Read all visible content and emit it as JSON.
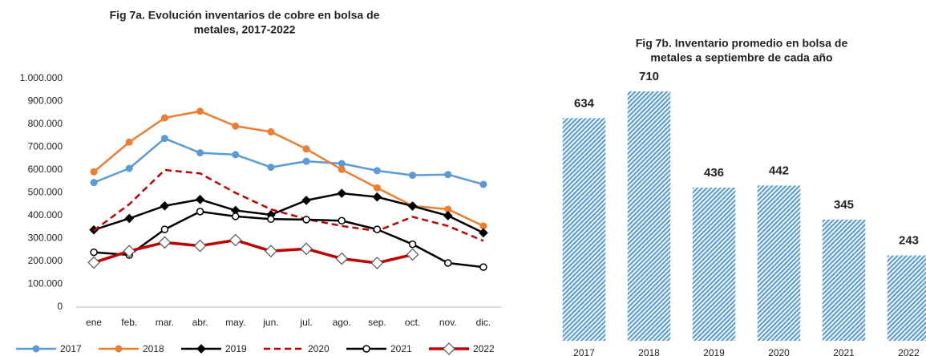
{
  "chart_data": [
    {
      "type": "line",
      "title": [
        "Fig 7a. Evolución  inventarios de cobre en bolsa de",
        "metales, 2017-2022"
      ],
      "categories": [
        "ene",
        "feb.",
        "mar.",
        "abr.",
        "may.",
        "jun.",
        "jul.",
        "ago.",
        "sep.",
        "oct.",
        "nov.",
        "dic."
      ],
      "ylim": [
        0,
        1000000
      ],
      "yticks": [
        0,
        {
          "value": 100000,
          "label": "100.000"
        },
        {
          "value": 200000,
          "label": "200.000"
        },
        {
          "value": 300000,
          "label": "300.000"
        },
        {
          "value": 400000,
          "label": "400.000"
        },
        {
          "value": 500000,
          "label": "500.000"
        },
        {
          "value": 600000,
          "label": "600.000"
        },
        {
          "value": 700000,
          "label": "700.000"
        },
        {
          "value": 800000,
          "label": "800.000"
        },
        {
          "value": 900000,
          "label": "900.000"
        },
        {
          "value": 1000000,
          "label": "1.000.000"
        }
      ],
      "legend": "bottom",
      "series": [
        {
          "name": "2017",
          "color": "#5b9bd5",
          "marker": "circle",
          "values": [
            545000,
            607000,
            738000,
            675000,
            667000,
            612000,
            638000,
            628000,
            597000,
            577000,
            580000,
            537000
          ]
        },
        {
          "name": "2018",
          "color": "#ed7d31",
          "marker": "circle",
          "values": [
            592000,
            722000,
            828000,
            857000,
            792000,
            767000,
            692000,
            602000,
            522000,
            443000,
            428000,
            355000
          ]
        },
        {
          "name": "2019",
          "color": "#000000",
          "marker": "diamond",
          "values": [
            338000,
            388000,
            443000,
            471000,
            423000,
            404000,
            467000,
            498000,
            482000,
            442000,
            400000,
            325000
          ]
        },
        {
          "name": "2020",
          "color": "#c00000",
          "marker": "none",
          "dashed": true,
          "values": [
            335000,
            450000,
            600000,
            585000,
            500000,
            428000,
            385000,
            355000,
            333000,
            395000,
            355000,
            290000
          ]
        },
        {
          "name": "2021",
          "color": "#000000",
          "marker": "circle-open",
          "values": [
            240000,
            228000,
            340000,
            418000,
            397000,
            385000,
            383000,
            378000,
            340000,
            275000,
            193000,
            175000
          ]
        },
        {
          "name": "2022",
          "color": "#c00000",
          "marker": "diamond-open",
          "thick": true,
          "values": [
            195000,
            245000,
            283000,
            268000,
            293000,
            245000,
            255000,
            212000,
            193000,
            230000,
            null,
            null
          ]
        }
      ]
    },
    {
      "type": "bar",
      "title": [
        "Fig 7b. Inventario promedio en bolsa de",
        "metales a septiembre de cada año"
      ],
      "categories": [
        "2017",
        "2018",
        "2019",
        "2020",
        "2021",
        "2022"
      ],
      "values": [
        634,
        710,
        436,
        442,
        345,
        243
      ],
      "color": "#5b9bd5",
      "hatched": true
    }
  ]
}
